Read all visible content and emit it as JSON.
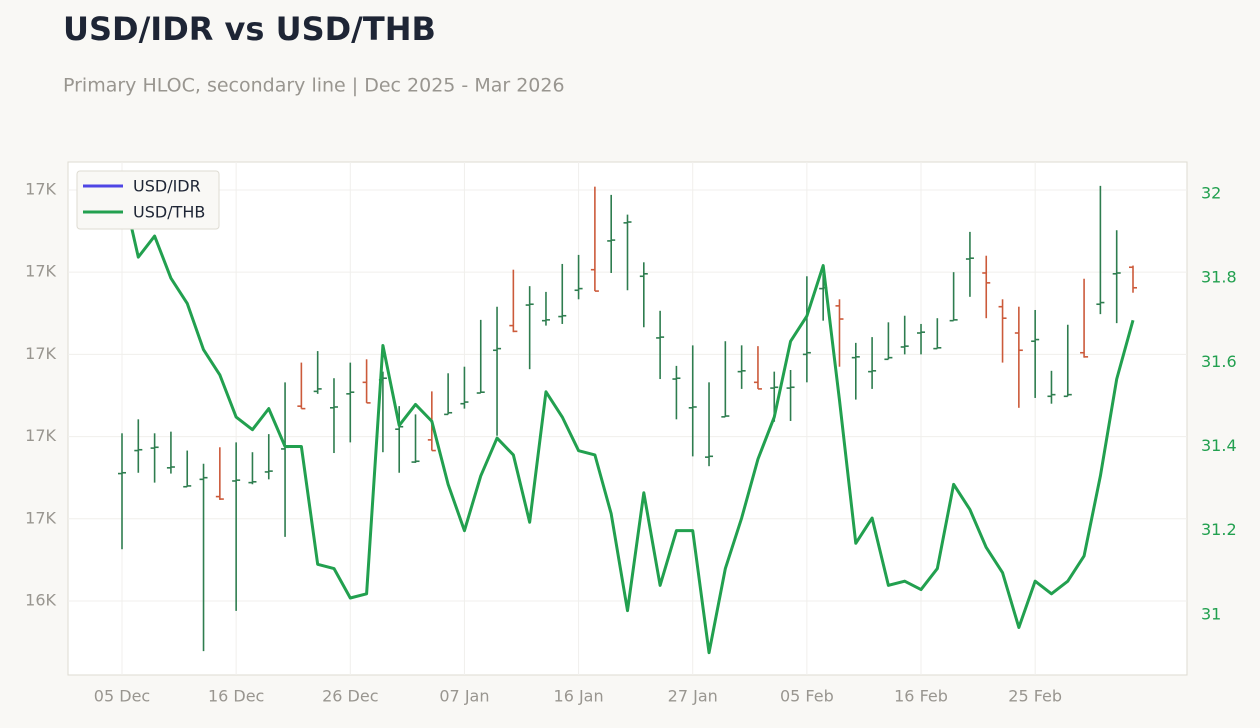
{
  "chart_data": {
    "type": "hloc",
    "title": "USD/IDR vs USD/THB",
    "subtitle": "Primary HLOC, secondary line | Dec 2025 - Mar 2026",
    "categories": [
      "05 Dec",
      null,
      null,
      null,
      null,
      null,
      null,
      "16 Dec",
      null,
      null,
      null,
      null,
      null,
      null,
      "26 Dec",
      null,
      null,
      null,
      null,
      null,
      null,
      "07 Jan",
      null,
      null,
      null,
      null,
      null,
      null,
      "16 Jan",
      null,
      null,
      null,
      null,
      null,
      null,
      "27 Jan",
      null,
      null,
      null,
      null,
      null,
      null,
      "05 Feb",
      null,
      null,
      null,
      null,
      null,
      null,
      "16 Feb",
      null,
      null,
      null,
      null,
      null,
      null,
      "25 Feb",
      null,
      null,
      null,
      null,
      null,
      null
    ],
    "series": [
      {
        "name": "USD/IDR",
        "color": "#4f46e5",
        "up_color": "#2e7d4f",
        "down_color": "#cc5a3a",
        "open": [
          16555,
          16583,
          16586,
          16562,
          16539,
          16548,
          16527,
          16546,
          16544,
          16557,
          16585,
          16637,
          16655,
          16635,
          16652,
          16666,
          16669,
          16609,
          16569,
          16596,
          16627,
          16640,
          16653,
          16705,
          16735,
          16760,
          16741,
          16746,
          16778,
          16803,
          16838,
          16860,
          16795,
          16720,
          16670,
          16635,
          16575,
          16624,
          16679,
          16666,
          16659,
          16659,
          16700,
          16780,
          16759,
          16696,
          16679,
          16694,
          16709,
          16726,
          16707,
          16741,
          16816,
          16799,
          16758,
          16726,
          16716,
          16649,
          16649,
          16702,
          16761,
          16798,
          16806
        ],
        "high": [
          16604,
          16621,
          16604,
          16606,
          16583,
          16567,
          16587,
          16593,
          16581,
          16603,
          16666,
          16690,
          16704,
          16671,
          16690,
          16694,
          16679,
          16637,
          16627,
          16655,
          16677,
          16685,
          16742,
          16758,
          16803,
          16783,
          16776,
          16810,
          16821,
          16904,
          16894,
          16870,
          16812,
          16753,
          16686,
          16711,
          16666,
          16716,
          16711,
          16710,
          16679,
          16681,
          16795,
          16798,
          16767,
          16714,
          16721,
          16739,
          16747,
          16737,
          16744,
          16800,
          16849,
          16820,
          16767,
          16758,
          16754,
          16680,
          16736,
          16792,
          16905,
          16851,
          16808
        ],
        "low": [
          16463,
          16556,
          16544,
          16555,
          16539,
          16339,
          16523,
          16388,
          16542,
          16548,
          16478,
          16634,
          16652,
          16580,
          16593,
          16641,
          16581,
          16556,
          16568,
          16583,
          16627,
          16634,
          16653,
          16601,
          16727,
          16682,
          16735,
          16737,
          16767,
          16777,
          16799,
          16778,
          16733,
          16670,
          16621,
          16576,
          16564,
          16624,
          16658,
          16658,
          16618,
          16619,
          16666,
          16741,
          16685,
          16645,
          16658,
          16694,
          16700,
          16700,
          16707,
          16741,
          16770,
          16744,
          16690,
          16635,
          16647,
          16640,
          16649,
          16696,
          16749,
          16738,
          16775
        ],
        "close": [
          16556,
          16584,
          16587,
          16563,
          16540,
          16550,
          16524,
          16547,
          16545,
          16558,
          16587,
          16634,
          16658,
          16636,
          16654,
          16641,
          16671,
          16612,
          16570,
          16583,
          16629,
          16642,
          16654,
          16707,
          16728,
          16761,
          16742,
          16747,
          16780,
          16777,
          16839,
          16861,
          16798,
          16721,
          16671,
          16636,
          16576,
          16625,
          16680,
          16658,
          16660,
          16660,
          16702,
          16781,
          16743,
          16697,
          16680,
          16696,
          16710,
          16727,
          16708,
          16742,
          16817,
          16787,
          16744,
          16705,
          16718,
          16651,
          16651,
          16697,
          16763,
          16799,
          16781
        ]
      },
      {
        "name": "USD/THB",
        "color": "#22a04f",
        "axis": "y2",
        "values": [
          32.02,
          31.85,
          31.9,
          31.8,
          31.74,
          31.63,
          31.57,
          31.47,
          31.44,
          31.49,
          31.4,
          31.4,
          31.12,
          31.11,
          31.04,
          31.05,
          31.64,
          31.45,
          31.5,
          31.46,
          31.31,
          31.2,
          31.33,
          31.42,
          31.38,
          31.22,
          31.53,
          31.47,
          31.39,
          31.38,
          31.24,
          31.01,
          31.29,
          31.07,
          31.2,
          31.2,
          30.91,
          31.11,
          31.23,
          31.37,
          31.47,
          31.65,
          31.71,
          31.83,
          31.51,
          31.17,
          31.23,
          31.07,
          31.08,
          31.06,
          31.11,
          31.31,
          31.25,
          31.16,
          31.1,
          30.97,
          31.08,
          31.05,
          31.08,
          31.14,
          31.33,
          31.56,
          31.7
        ]
      }
    ],
    "ylim": [
      16310,
      16934
    ],
    "yticks": [
      {
        "value": 16400,
        "label": "16K"
      },
      {
        "value": 16500,
        "label": "17K"
      },
      {
        "value": 16600,
        "label": "17K"
      },
      {
        "value": 16700,
        "label": "17K"
      },
      {
        "value": 16800,
        "label": "17K"
      },
      {
        "value": 16900,
        "label": "17K"
      }
    ],
    "y2lim": [
      30.857,
      32.076
    ],
    "y2ticks": [
      31,
      31.2,
      31.4,
      31.6,
      31.8,
      32
    ],
    "grid": true,
    "legend": "top-left"
  }
}
